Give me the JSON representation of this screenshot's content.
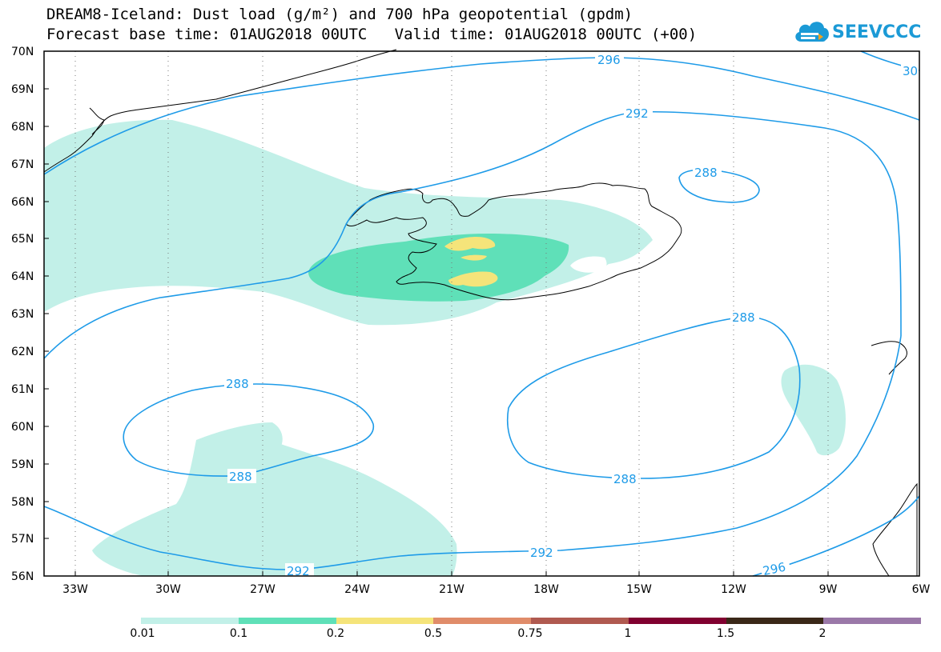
{
  "header": {
    "title_line1": "DREAM8-Iceland: Dust load (g/m²) and 700 hPa geopotential (gpdm)",
    "title_line2": "Forecast base time: 01AUG2018 00UTC   Valid time: 01AUG2018 00UTC (+00)"
  },
  "logo": {
    "text": "SEEVCCC",
    "icon": "cloud-icon",
    "color": "#1b9ad6"
  },
  "map": {
    "lat_labels": [
      "70N",
      "69N",
      "68N",
      "67N",
      "66N",
      "65N",
      "64N",
      "63N",
      "62N",
      "61N",
      "60N",
      "59N",
      "58N",
      "57N",
      "56N"
    ],
    "lon_labels": [
      "33W",
      "30W",
      "27W",
      "24W",
      "21W",
      "18W",
      "15W",
      "12W",
      "9W",
      "6W"
    ],
    "contour_labels": {
      "c296_top": "296",
      "c300_top": "30",
      "c292_top": "292",
      "c288_ne": "288",
      "c288_e_top": "288",
      "c288_e_bottom": "288",
      "c288_w_top": "288",
      "c288_w_bottom": "288",
      "c292_bottom_left": "292",
      "c292_bottom_mid": "292",
      "c296_bottom": "296"
    },
    "contour_color": "#1e9be8",
    "coast_color": "#000000"
  },
  "legend": {
    "colors": [
      "#c2f0e8",
      "#5fe0b8",
      "#f5e47a",
      "#e08c6a",
      "#b05a50",
      "#800030",
      "#3a2818",
      "#9a78a8"
    ],
    "labels": [
      "0.01",
      "0.1",
      "0.2",
      "0.5",
      "0.75",
      "1",
      "1.5",
      "2"
    ]
  }
}
